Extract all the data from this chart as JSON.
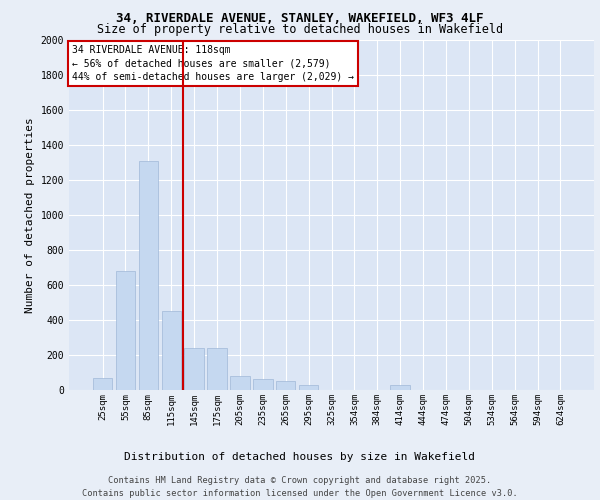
{
  "title_line1": "34, RIVERDALE AVENUE, STANLEY, WAKEFIELD, WF3 4LF",
  "title_line2": "Size of property relative to detached houses in Wakefield",
  "xlabel": "Distribution of detached houses by size in Wakefield",
  "ylabel": "Number of detached properties",
  "categories": [
    "25sqm",
    "55sqm",
    "85sqm",
    "115sqm",
    "145sqm",
    "175sqm",
    "205sqm",
    "235sqm",
    "265sqm",
    "295sqm",
    "325sqm",
    "354sqm",
    "384sqm",
    "414sqm",
    "444sqm",
    "474sqm",
    "504sqm",
    "534sqm",
    "564sqm",
    "594sqm",
    "624sqm"
  ],
  "values": [
    70,
    680,
    1310,
    450,
    240,
    240,
    80,
    65,
    50,
    30,
    0,
    0,
    0,
    30,
    0,
    0,
    0,
    0,
    0,
    0,
    0
  ],
  "bar_color": "#c5d8f0",
  "bar_edge_color": "#a0b8d8",
  "vline_x_index": 3,
  "vline_color": "#cc0000",
  "annotation_text": "34 RIVERDALE AVENUE: 118sqm\n← 56% of detached houses are smaller (2,579)\n44% of semi-detached houses are larger (2,029) →",
  "annotation_box_color": "#ffffff",
  "annotation_box_edge": "#cc0000",
  "ylim": [
    0,
    2000
  ],
  "yticks": [
    0,
    200,
    400,
    600,
    800,
    1000,
    1200,
    1400,
    1600,
    1800,
    2000
  ],
  "background_color": "#e8eef7",
  "plot_bg_color": "#dce6f5",
  "grid_color": "#ffffff",
  "footer_line1": "Contains HM Land Registry data © Crown copyright and database right 2025.",
  "footer_line2": "Contains public sector information licensed under the Open Government Licence v3.0."
}
